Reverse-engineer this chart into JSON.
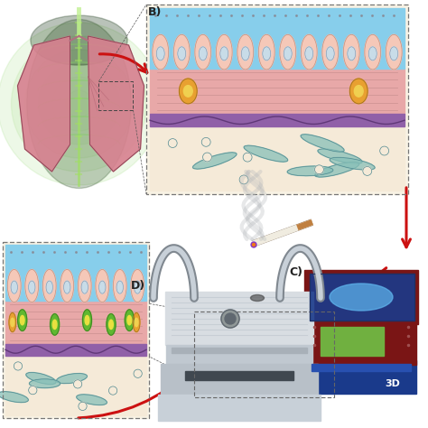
{
  "bg_color": "#ffffff",
  "label_B": "B)",
  "label_C": "C)",
  "label_D": "D)",
  "arrow_color": "#cc1111",
  "cell_colors": {
    "top_blue": "#87ceeb",
    "cell_body": "#f5c8b8",
    "cell_outline": "#c09080",
    "nucleus": "#c8dce8",
    "nucleus_outline": "#8090a8",
    "ecm_pink": "#e8a8a8",
    "ecm_fiber": "#c08888",
    "membrane_purple": "#9060a8",
    "membrane_wave": "#603878",
    "lower_beige": "#f5ead8",
    "erythrocyte_teal": "#88c0b8",
    "erythrocyte_outline": "#508890",
    "org_orange": "#e8a030",
    "org_orange_inner": "#f0d050",
    "org_green": "#60b830",
    "org_green_dark": "#3a8020",
    "org_yellow_inner": "#e8e040",
    "dots_dark": "#888088"
  },
  "lung_colors": {
    "glow_green": "#70cc40",
    "body_dark": "#204818",
    "spine": "#a0e060",
    "lung_pink": "#d88090",
    "lung_dark": "#904858",
    "bronchi": "#b07080",
    "rib": "#80d060"
  },
  "printer_colors": {
    "dark_red": "#7a1515",
    "blue": "#1a3a8b",
    "blue_inner": "#2850b0",
    "green": "#70b040",
    "light_blue": "#4090d0",
    "light_blue2": "#60b8f0"
  },
  "chip_colors": {
    "top": "#d0d8e0",
    "mid": "#c0c8d0",
    "bot": "#a8b0b8",
    "channel": "#90989f",
    "hole": "#606870",
    "tube": "#909898",
    "tube_light": "#c8d0d8",
    "stripe": "#b8c0c8"
  },
  "dashed_color": "#888888"
}
